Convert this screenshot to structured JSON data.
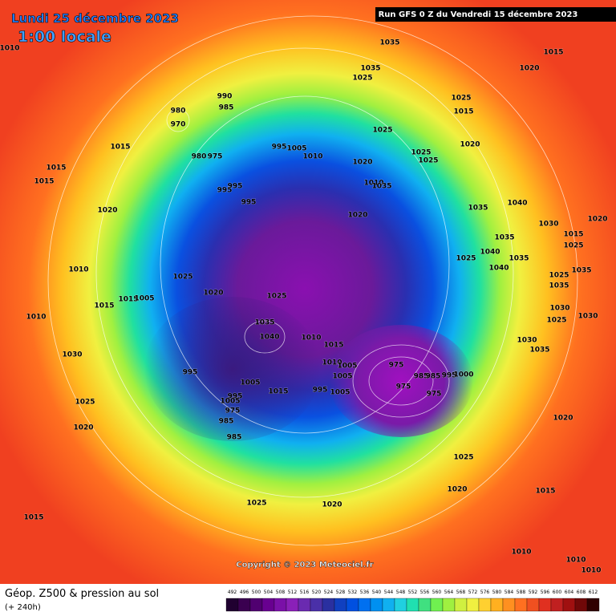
{
  "header": {
    "date": "Lundi 25 décembre 2023",
    "time": "1:00 locale",
    "run": "Run GFS 0 Z du Vendredi 15 décembre 2023"
  },
  "copyright": "Copyright © 2023 Meteociel.fr",
  "legend": {
    "title": "Géop. Z500 & pression au sol",
    "subtitle": "(+ 240h)",
    "scale": [
      492,
      496,
      500,
      504,
      508,
      512,
      516,
      520,
      524,
      528,
      532,
      536,
      540,
      544,
      548,
      552,
      556,
      560,
      564,
      568,
      572,
      576,
      580,
      584,
      588,
      592,
      596,
      600,
      604,
      608,
      612
    ]
  },
  "isobar_labels": [
    1010,
    1035,
    1015,
    1020,
    1035,
    1025,
    990,
    985,
    980,
    970,
    1025,
    1015,
    1025,
    995,
    1005,
    1010,
    980,
    975,
    1015,
    1020,
    1025,
    1025,
    1020,
    1015,
    1015,
    1010,
    1035,
    995,
    995,
    995,
    1020,
    1035,
    1040,
    1020,
    1030,
    1020,
    1015,
    1035,
    1025,
    1040,
    1035,
    1025,
    1010,
    1040,
    1025,
    1020,
    1025,
    1025,
    1035,
    1035,
    1015,
    1005,
    1015,
    1030,
    1010,
    1030,
    1025,
    1035,
    1040,
    1010,
    1015,
    1030,
    1035,
    1030,
    1010,
    975,
    1005,
    995,
    1005,
    985,
    985,
    995,
    1000,
    1005,
    975,
    995,
    1005,
    1015,
    975,
    995,
    985,
    1005,
    975,
    985,
    1025,
    1020,
    1025,
    1020,
    1025,
    1020,
    1015,
    1020,
    1015,
    1010,
    1010,
    1010
  ]
}
